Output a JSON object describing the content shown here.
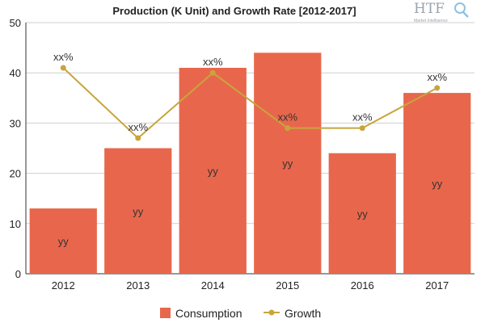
{
  "chart_data": {
    "type": "bar",
    "title": "Production (K Unit) and Growth Rate [2012-2017]",
    "categories": [
      "2012",
      "2013",
      "2014",
      "2015",
      "2016",
      "2017"
    ],
    "ylim": [
      0,
      50
    ],
    "yticks": [
      0,
      10,
      20,
      30,
      40,
      50
    ],
    "grid": true,
    "legend_position": "bottom",
    "series": [
      {
        "name": "Consumption",
        "type": "bar",
        "color": "#e8674c",
        "values": [
          13,
          25,
          41,
          44,
          24,
          36
        ],
        "labels": [
          "yy",
          "yy",
          "yy",
          "yy",
          "yy",
          "yy"
        ]
      },
      {
        "name": "Growth",
        "type": "line",
        "color": "#c8a53c",
        "values": [
          41,
          27,
          40,
          29,
          29,
          37
        ],
        "labels": [
          "xx%",
          "xx%",
          "xx%",
          "xx%",
          "xx%",
          "xx%"
        ]
      }
    ]
  },
  "logo": {
    "text": "HTF",
    "subtext": "Market Intelligence",
    "icon": "magnifier-icon"
  }
}
